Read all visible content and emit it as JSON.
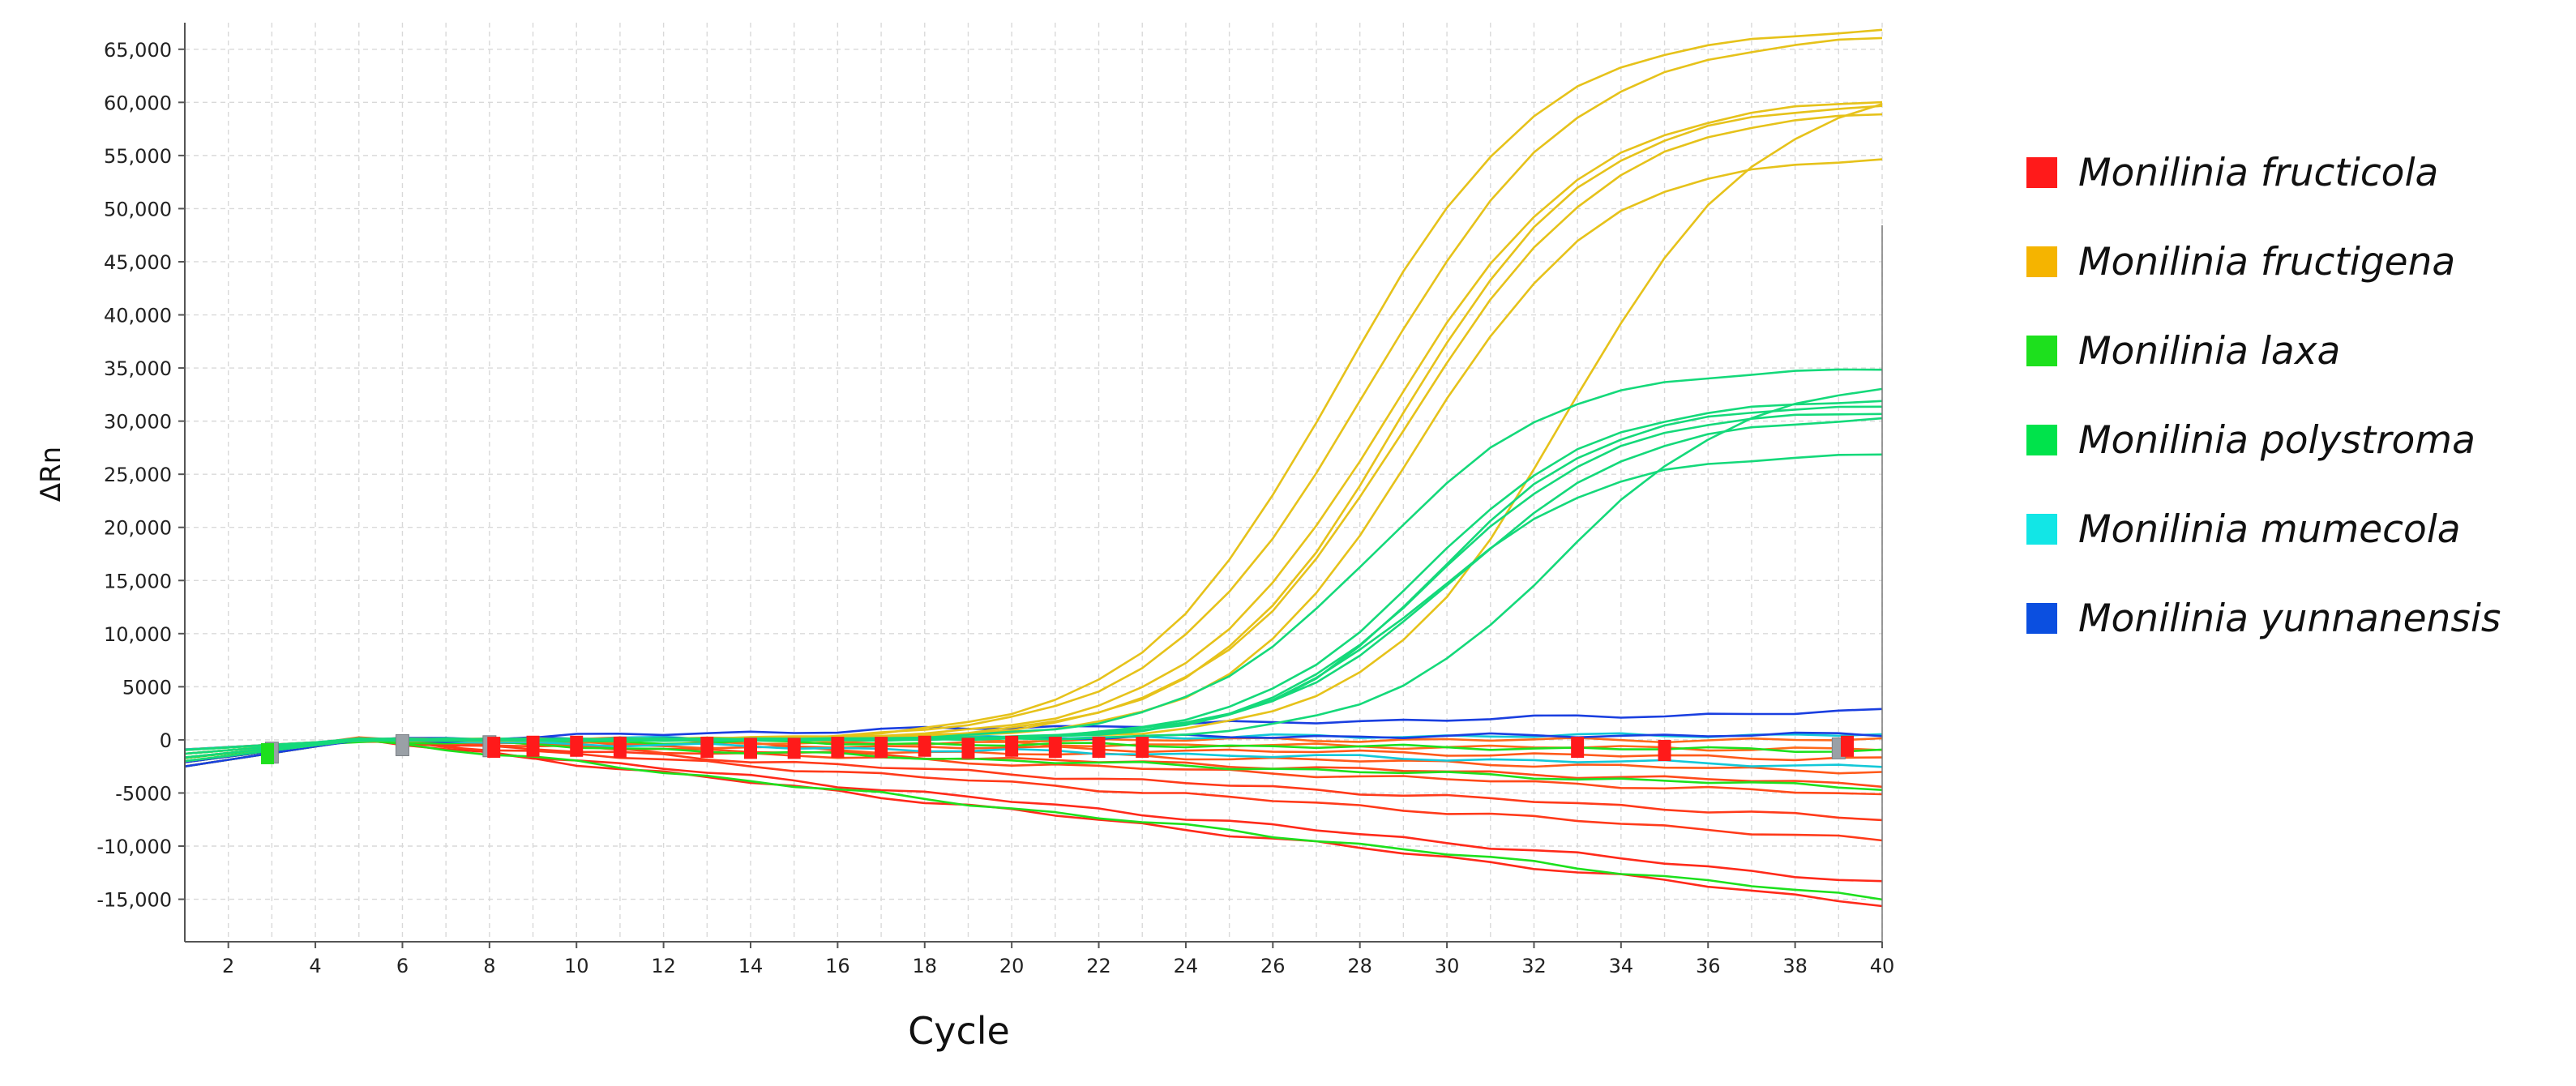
{
  "chart_data": {
    "type": "line",
    "title": "",
    "xlabel": "Cycle",
    "ylabel": "ΔRn",
    "xlim": [
      1,
      40
    ],
    "ylim": [
      -19000,
      67500
    ],
    "grid": true,
    "legend_position": "right",
    "x_ticks": [
      2,
      4,
      6,
      8,
      10,
      12,
      14,
      16,
      18,
      20,
      22,
      24,
      26,
      28,
      30,
      32,
      34,
      36,
      38,
      40
    ],
    "y_ticks": [
      -15000,
      -10000,
      -5000,
      0,
      5000,
      10000,
      15000,
      20000,
      25000,
      30000,
      35000,
      40000,
      45000,
      50000,
      55000,
      60000,
      65000
    ],
    "y_tick_labels": [
      "-15,000",
      "-10,000",
      "-5000",
      "0",
      "5000",
      "10,000",
      "15,000",
      "20,000",
      "25,000",
      "30,000",
      "35,000",
      "40,000",
      "45,000",
      "50,000",
      "55,000",
      "60,000",
      "65,000"
    ],
    "legend": [
      {
        "name": "Monilinia fructicola",
        "color": "#ff1a1a"
      },
      {
        "name": "Monilinia fructigena",
        "color": "#f5b400"
      },
      {
        "name": "Monilinia laxa",
        "color": "#1de01d"
      },
      {
        "name": "Monilinia polystroma",
        "color": "#00e34b"
      },
      {
        "name": "Monilinia mumecola",
        "color": "#12e6e6"
      },
      {
        "name": "Monilinia yunnanensis",
        "color": "#0b4fe0"
      }
    ],
    "curve_model": "Amplification curves approximated as sigmoids (plateau, midpoint cycle, slope). Non-amplified traces drift linearly toward an end value at cycle 40.",
    "amplified_series": [
      {
        "name": "Monilinia fructigena",
        "color": "#e6c21a",
        "plateau": 67000,
        "midpoint": 27.5,
        "slope": 2.3
      },
      {
        "name": "Monilinia fructigena",
        "color": "#e6c21a",
        "plateau": 66500,
        "midpoint": 28.2,
        "slope": 2.4
      },
      {
        "name": "Monilinia fructigena",
        "color": "#e6c21a",
        "plateau": 60500,
        "midpoint": 28.6,
        "slope": 2.3
      },
      {
        "name": "Monilinia fructigena",
        "color": "#e6c21a",
        "plateau": 60000,
        "midpoint": 28.9,
        "slope": 2.2
      },
      {
        "name": "Monilinia fructigena",
        "color": "#e6c21a",
        "plateau": 59500,
        "midpoint": 29.1,
        "slope": 2.3
      },
      {
        "name": "Monilinia fructigena",
        "color": "#e6c21a",
        "plateau": 55000,
        "midpoint": 29.3,
        "slope": 2.1
      },
      {
        "name": "Monilinia fructigena",
        "color": "#e6c21a",
        "plateau": 62000,
        "midpoint": 32.8,
        "slope": 2.2
      },
      {
        "name": "Monilinia polystroma",
        "color": "#14d97a",
        "plateau": 35000,
        "midpoint": 28.3,
        "slope": 2.1
      },
      {
        "name": "Monilinia polystroma",
        "color": "#14d97a",
        "plateau": 32000,
        "midpoint": 29.5,
        "slope": 2.0
      },
      {
        "name": "Monilinia polystroma",
        "color": "#14d97a",
        "plateau": 31500,
        "midpoint": 29.8,
        "slope": 1.9
      },
      {
        "name": "Monilinia polystroma",
        "color": "#14d97a",
        "plateau": 31000,
        "midpoint": 29.8,
        "slope": 2.0
      },
      {
        "name": "Monilinia polystroma",
        "color": "#14d97a",
        "plateau": 30500,
        "midpoint": 30.2,
        "slope": 2.1
      },
      {
        "name": "Monilinia polystroma",
        "color": "#14d97a",
        "plateau": 27000,
        "midpoint": 29.6,
        "slope": 2.0
      },
      {
        "name": "Monilinia polystroma",
        "color": "#14d97a",
        "plateau": 34000,
        "midpoint": 32.6,
        "slope": 2.1
      }
    ],
    "baseline_series": [
      {
        "name": "Monilinia fructicola",
        "color": "#ff2a1a",
        "end": -15500
      },
      {
        "name": "Monilinia fructicola",
        "color": "#ff2a1a",
        "end": -13500
      },
      {
        "name": "Monilinia fructicola",
        "color": "#ff3a1a",
        "end": -9500
      },
      {
        "name": "Monilinia fructicola",
        "color": "#ff3a1a",
        "end": -7500
      },
      {
        "name": "Monilinia fructicola",
        "color": "#ff4a1a",
        "end": -5200
      },
      {
        "name": "Monilinia fructicola",
        "color": "#ff4a1a",
        "end": -4200
      },
      {
        "name": "Monilinia fructicola",
        "color": "#ff5a1a",
        "end": -3000
      },
      {
        "name": "Monilinia fructicola",
        "color": "#ff5a1a",
        "end": -1800
      },
      {
        "name": "Monilinia fructicola",
        "color": "#ff6a1a",
        "end": -900
      },
      {
        "name": "Monilinia fructicola",
        "color": "#ff6a1a",
        "end": 0
      },
      {
        "name": "Monilinia laxa",
        "color": "#1de01d",
        "end": -15000
      },
      {
        "name": "Monilinia laxa",
        "color": "#1de01d",
        "end": -4500
      },
      {
        "name": "Monilinia laxa",
        "color": "#1de01d",
        "end": -1000
      },
      {
        "name": "Monilinia mumecola",
        "color": "#12c8d8",
        "end": -2500
      },
      {
        "name": "Monilinia mumecola",
        "color": "#12c8d8",
        "end": 500
      },
      {
        "name": "Monilinia yunnanensis",
        "color": "#1a3fe0",
        "end": 2700
      },
      {
        "name": "Monilinia yunnanensis",
        "color": "#1a3fe0",
        "end": 500
      }
    ],
    "threshold_markers": [
      {
        "cycle": 3,
        "value": -1200,
        "color": "#9aa0a6"
      },
      {
        "cycle": 2.9,
        "value": -1300,
        "color": "#1de01d"
      },
      {
        "cycle": 6,
        "value": -500,
        "color": "#9aa0a6"
      },
      {
        "cycle": 8,
        "value": -600,
        "color": "#9aa0a6"
      },
      {
        "cycle": 8.1,
        "value": -700,
        "color": "#ff1a1a"
      },
      {
        "cycle": 9,
        "value": -600,
        "color": "#ff1a1a"
      },
      {
        "cycle": 10,
        "value": -600,
        "color": "#ff1a1a"
      },
      {
        "cycle": 11,
        "value": -700,
        "color": "#ff1a1a"
      },
      {
        "cycle": 13,
        "value": -700,
        "color": "#ff1a1a"
      },
      {
        "cycle": 14,
        "value": -800,
        "color": "#ff1a1a"
      },
      {
        "cycle": 15,
        "value": -800,
        "color": "#ff1a1a"
      },
      {
        "cycle": 16,
        "value": -700,
        "color": "#ff1a1a"
      },
      {
        "cycle": 17,
        "value": -700,
        "color": "#ff1a1a"
      },
      {
        "cycle": 18,
        "value": -600,
        "color": "#ff1a1a"
      },
      {
        "cycle": 19,
        "value": -800,
        "color": "#ff1a1a"
      },
      {
        "cycle": 20,
        "value": -600,
        "color": "#ff1a1a"
      },
      {
        "cycle": 21,
        "value": -700,
        "color": "#ff1a1a"
      },
      {
        "cycle": 22,
        "value": -700,
        "color": "#ff1a1a"
      },
      {
        "cycle": 23,
        "value": -700,
        "color": "#ff1a1a"
      },
      {
        "cycle": 33,
        "value": -700,
        "color": "#ff1a1a"
      },
      {
        "cycle": 35,
        "value": -1000,
        "color": "#ff1a1a"
      },
      {
        "cycle": 39,
        "value": -800,
        "color": "#9aa0a6"
      },
      {
        "cycle": 39.2,
        "value": -600,
        "color": "#ff1a1a"
      }
    ]
  }
}
